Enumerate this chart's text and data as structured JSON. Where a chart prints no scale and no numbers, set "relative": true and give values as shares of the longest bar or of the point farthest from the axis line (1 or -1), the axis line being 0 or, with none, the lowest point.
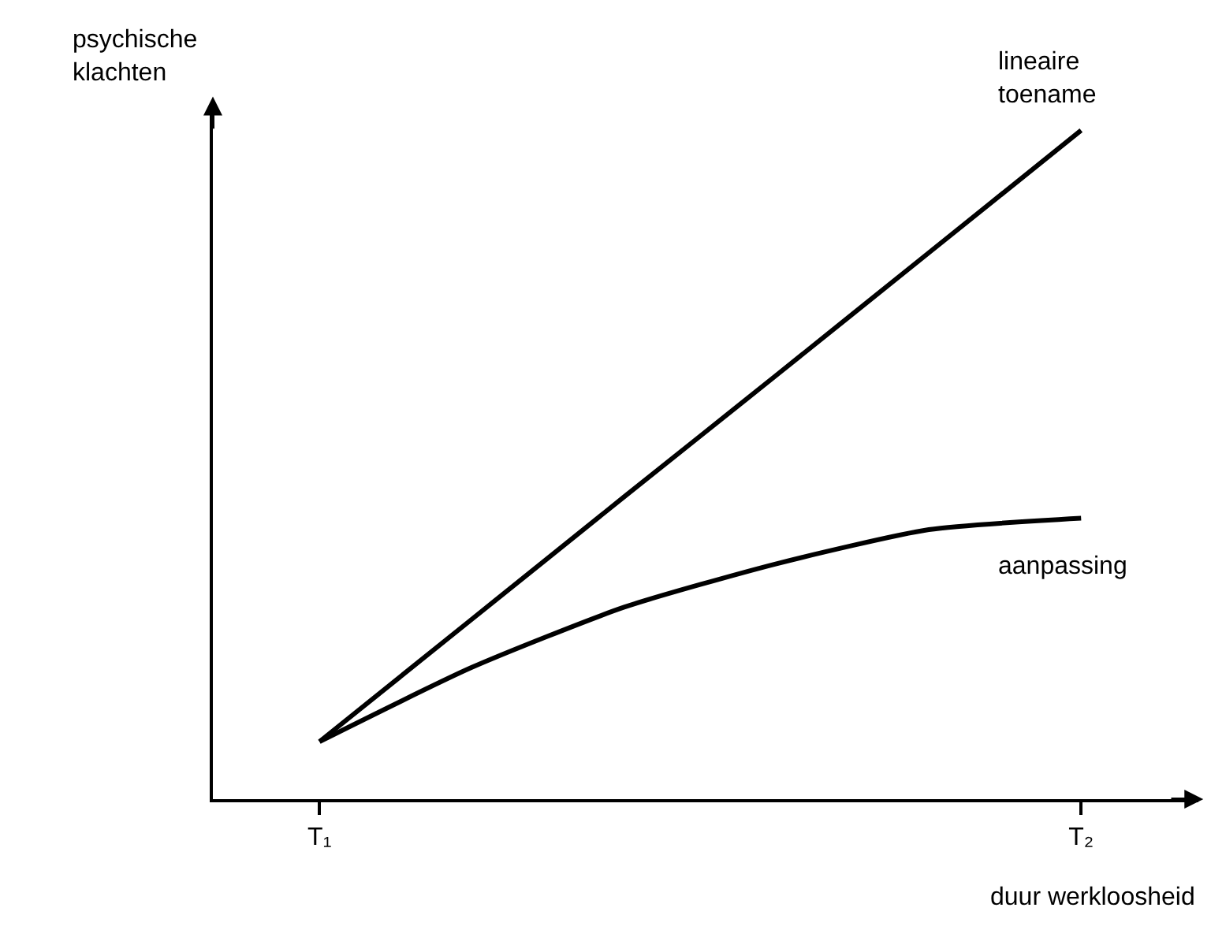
{
  "chart_data": {
    "type": "line",
    "relative": true,
    "xlabel": "duur werkloosheid",
    "ylabel": "psychische klachten",
    "categories": [
      "T₁",
      null,
      null,
      null,
      null,
      "T₂"
    ],
    "series": [
      {
        "name": "lineaire toename",
        "color": "#000000",
        "values": [
          0.086,
          0.269,
          0.452,
          0.634,
          0.817,
          1
        ]
      },
      {
        "name": "aanpassing",
        "color": "#000000",
        "values": [
          0.086,
          0.197,
          0.287,
          0.352,
          0.403,
          0.42
        ]
      }
    ],
    "tick_labels": "x",
    "grid": false,
    "legend": false,
    "marker": "none",
    "line_style": "solid"
  }
}
